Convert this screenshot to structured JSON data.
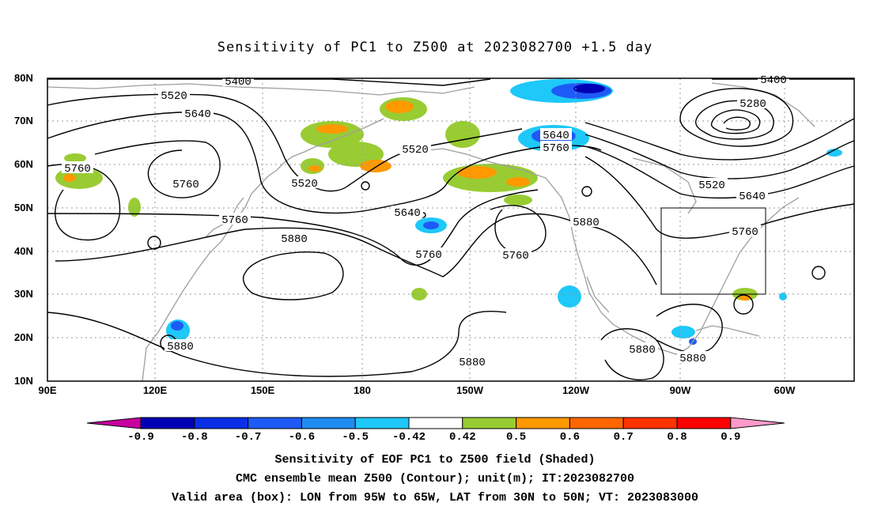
{
  "title": "Sensitivity of PC1 to Z500 at 2023082700 +1.5 day",
  "map": {
    "lat_ticks": [
      "80N",
      "70N",
      "60N",
      "50N",
      "40N",
      "30N",
      "20N",
      "10N"
    ],
    "lon_ticks": [
      "90E",
      "120E",
      "150E",
      "180",
      "150W",
      "120W",
      "90W",
      "60W"
    ],
    "contour_labels": [
      "5400",
      "5400",
      "5520",
      "5520",
      "5520",
      "5520",
      "5640",
      "5640",
      "5640",
      "5640",
      "5760",
      "5760",
      "5760",
      "5760",
      "5760",
      "5760",
      "5760",
      "5880",
      "5880",
      "5880",
      "5880",
      "5880",
      "5880",
      "5280"
    ],
    "box": {
      "lon_from": "95W",
      "lon_to": "65W",
      "lat_from": "30N",
      "lat_to": "50N"
    },
    "colors": {
      "contour": "#000000",
      "coast": "#9e9e9e",
      "grid": "#9a9a9a"
    }
  },
  "colorbar": {
    "labels": [
      "-0.9",
      "-0.8",
      "-0.7",
      "-0.6",
      "-0.5",
      "-0.42",
      "0.42",
      "0.5",
      "0.6",
      "0.7",
      "0.8",
      "0.9"
    ],
    "colors": [
      "#c800a0",
      "#0000b4",
      "#0a2fe6",
      "#1e5af5",
      "#1f8cf0",
      "#1ec8f8",
      "#ffffff",
      "#99cc33",
      "#ff9900",
      "#ff6600",
      "#ff3300",
      "#ff0000",
      "#ff99cc"
    ]
  },
  "captions": [
    "Sensitivity of EOF PC1 to Z500 field (Shaded)",
    "CMC ensemble mean Z500 (Contour); unit(m); IT:2023082700",
    "Valid area (box): LON from 95W to 65W, LAT from 30N to 50N; VT: 2023083000"
  ]
}
